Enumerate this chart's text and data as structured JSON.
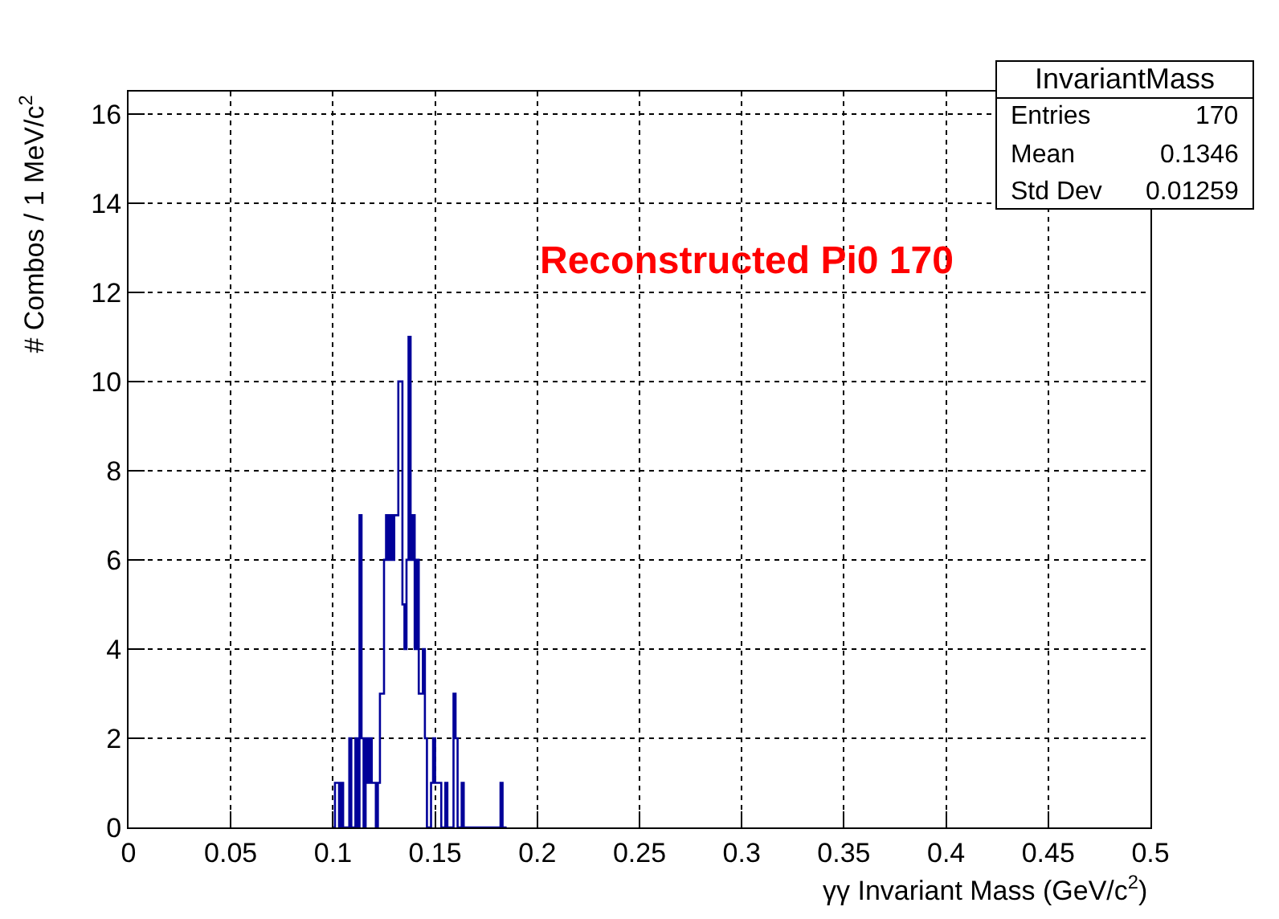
{
  "chart_data": {
    "type": "histogram",
    "xlabel": "γγ Invariant Mass (GeV/c$^{2}$)",
    "ylabel": "# Combos / 1 MeV/c$^{2}$",
    "annotations": [
      "Reconstructed Pi0 170",
      "InvariantMass",
      "Entries",
      "170",
      "Mean",
      "0.1346",
      "Std Dev",
      "0.01259"
    ],
    "color": "#000099",
    "bins": [
      0.1,
      0.101,
      0.102,
      0.103,
      0.104,
      0.105,
      0.106,
      0.107,
      0.108,
      0.109,
      0.11,
      0.111,
      0.112,
      0.113,
      0.114,
      0.115,
      0.116,
      0.117,
      0.118,
      0.119,
      0.12,
      0.121,
      0.122,
      0.123,
      0.124,
      0.125,
      0.126,
      0.127,
      0.128,
      0.129,
      0.13,
      0.131,
      0.132,
      0.133,
      0.134,
      0.135,
      0.136,
      0.137,
      0.138,
      0.139,
      0.14,
      0.141,
      0.142,
      0.143,
      0.144,
      0.145,
      0.146,
      0.147,
      0.148,
      0.149,
      0.15,
      0.151,
      0.152,
      0.153,
      0.154,
      0.155,
      0.156,
      0.157,
      0.158,
      0.159,
      0.16,
      0.161,
      0.162,
      0.163,
      0.164,
      0.165,
      0.166,
      0.167,
      0.168,
      0.169,
      0.17,
      0.171,
      0.172,
      0.173,
      0.174,
      0.175,
      0.176,
      0.177,
      0.178,
      0.179,
      0.18,
      0.181,
      0.182,
      0.183,
      0.184,
      0.185
    ],
    "values": [
      0,
      1,
      1,
      0,
      1,
      0,
      0,
      0,
      2,
      0,
      0,
      2,
      0,
      7,
      2,
      0,
      2,
      1,
      2,
      1,
      1,
      0,
      1,
      3,
      3,
      6,
      7,
      6,
      7,
      6,
      7,
      7,
      10,
      10,
      5,
      4,
      6,
      11,
      6,
      7,
      4,
      6,
      3,
      3,
      4,
      2,
      0,
      0,
      1,
      2,
      1,
      1,
      1,
      0,
      0,
      1,
      0,
      0,
      0,
      3,
      2,
      0,
      0,
      1,
      0,
      0,
      0,
      0,
      0,
      0,
      0,
      0,
      0,
      0,
      0,
      0,
      0,
      0,
      0,
      0,
      0,
      0,
      1,
      0,
      0
    ],
    "xlim": [
      0,
      0.5
    ],
    "xticks": [
      0,
      0.05,
      0.1,
      0.15,
      0.2,
      0.25,
      0.3,
      0.35,
      0.4,
      0.45,
      0.5
    ],
    "ylim": [
      0,
      16.5
    ],
    "yticks": [
      0,
      2,
      4,
      6,
      8,
      10,
      12,
      14,
      16
    ],
    "grid": true
  }
}
